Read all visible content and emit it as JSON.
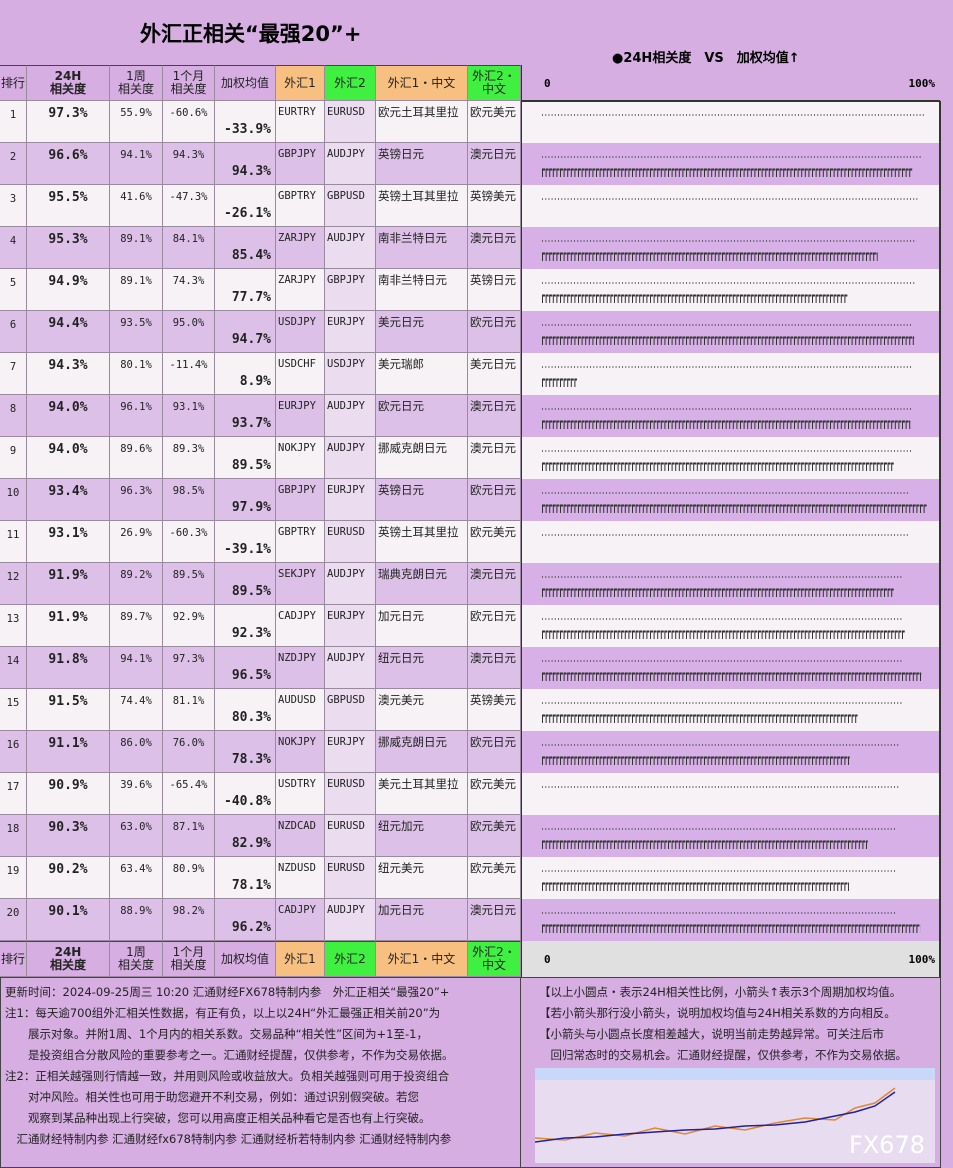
{
  "title": "外汇正相关“最强20”+",
  "legend_title": "●24H相关度　VS　加权均值↑",
  "header": [
    "排行",
    "24H\n相关度",
    "1周\n相关度",
    "1个月\n相关度",
    "加权均值",
    "外汇1",
    "外汇2",
    "外汇1・中文",
    "外汇2・\n中文"
  ],
  "scale_ticks": [
    0,
    {
      "value": 100,
      "label": "100%"
    }
  ],
  "rows": [
    [
      1,
      "97.3%",
      "55.9%",
      "-60.6%",
      "-33.9%",
      "EURTRY",
      "EURUSD",
      "欧元土耳其里拉",
      "欧元美元"
    ],
    [
      2,
      "96.6%",
      "94.1%",
      "94.3%",
      "94.3%",
      "GBPJPY",
      "AUDJPY",
      "英镑日元",
      "澳元日元"
    ],
    [
      3,
      "95.5%",
      "41.6%",
      "-47.3%",
      "-26.1%",
      "GBPTRY",
      "GBPUSD",
      "英镑土耳其里拉",
      "英镑美元"
    ],
    [
      4,
      "95.3%",
      "89.1%",
      "84.1%",
      "85.4%",
      "ZARJPY",
      "AUDJPY",
      "南非兰特日元",
      "澳元日元"
    ],
    [
      5,
      "94.9%",
      "89.1%",
      "74.3%",
      "77.7%",
      "ZARJPY",
      "GBPJPY",
      "南非兰特日元",
      "英镑日元"
    ],
    [
      6,
      "94.4%",
      "93.5%",
      "95.0%",
      "94.7%",
      "USDJPY",
      "EURJPY",
      "美元日元",
      "欧元日元"
    ],
    [
      7,
      "94.3%",
      "80.1%",
      "-11.4%",
      "8.9%",
      "USDCHF",
      "USDJPY",
      "美元瑞郎",
      "美元日元"
    ],
    [
      8,
      "94.0%",
      "96.1%",
      "93.1%",
      "93.7%",
      "EURJPY",
      "AUDJPY",
      "欧元日元",
      "澳元日元"
    ],
    [
      9,
      "94.0%",
      "89.6%",
      "89.3%",
      "89.5%",
      "NOKJPY",
      "AUDJPY",
      "挪威克朗日元",
      "澳元日元"
    ],
    [
      10,
      "93.4%",
      "96.3%",
      "98.5%",
      "97.9%",
      "GBPJPY",
      "EURJPY",
      "英镑日元",
      "欧元日元"
    ],
    [
      11,
      "93.1%",
      "26.9%",
      "-60.3%",
      "-39.1%",
      "GBPTRY",
      "EURUSD",
      "英镑土耳其里拉",
      "欧元美元"
    ],
    [
      12,
      "91.9%",
      "89.2%",
      "89.5%",
      "89.5%",
      "SEKJPY",
      "AUDJPY",
      "瑞典克朗日元",
      "澳元日元"
    ],
    [
      13,
      "91.9%",
      "89.7%",
      "92.9%",
      "92.3%",
      "CADJPY",
      "EURJPY",
      "加元日元",
      "欧元日元"
    ],
    [
      14,
      "91.8%",
      "94.1%",
      "97.3%",
      "96.5%",
      "NZDJPY",
      "AUDJPY",
      "纽元日元",
      "澳元日元"
    ],
    [
      15,
      "91.5%",
      "74.4%",
      "81.1%",
      "80.3%",
      "AUDUSD",
      "GBPUSD",
      "澳元美元",
      "英镑美元"
    ],
    [
      16,
      "91.1%",
      "86.0%",
      "76.0%",
      "78.3%",
      "NOKJPY",
      "EURJPY",
      "挪威克朗日元",
      "欧元日元"
    ],
    [
      17,
      "90.9%",
      "39.6%",
      "-65.4%",
      "-40.8%",
      "USDTRY",
      "EURUSD",
      "美元土耳其里拉",
      "欧元美元"
    ],
    [
      18,
      "90.3%",
      "63.0%",
      "87.1%",
      "82.9%",
      "NZDCAD",
      "EURUSD",
      "纽元加元",
      "欧元美元"
    ],
    [
      19,
      "90.2%",
      "63.4%",
      "80.9%",
      "78.1%",
      "NZDUSD",
      "EURUSD",
      "纽元美元",
      "欧元美元"
    ],
    [
      20,
      "90.1%",
      "88.9%",
      "98.2%",
      "96.2%",
      "CADJPY",
      "AUDJPY",
      "加元日元",
      "澳元日元"
    ]
  ],
  "notes_left": [
    "更新时间：2024-09-25周三 10:20 汇通财经FX678特制内参　外汇正相关“最强20”+",
    "注1：每天逾700组外汇相关性数据，有正有负，以上以24H“外汇最强正相关前20”为",
    "　　展示对象。并附1周、1个月内的相关系数。交易品种“相关性”区间为+1至-1，",
    "　　是投资组合分散风险的重要参考之一。汇通财经提醒，仅供参考，不作为交易依据。",
    "注2：正相关越强则行情越一致，并用则风险或收益放大。负相关越强则可用于投资组合",
    "　　对冲风险。相关性也可用于助您避开不利交易，例如：通过识别假突破。若您",
    "　　观察到某品种出现上行突破，您可以用高度正相关品种看它是否也有上行突破。",
    "　汇通财经特制内参 汇通财经fx678特制内参 汇通财经析若特制内参 汇通财经特制内参"
  ],
  "notes_right": [
    "【以上小圆点・表示24H相关性比例，小箭头↑表示3个周期加权均值。",
    "【若小箭头那行没小箭头，说明加权均值与24H相关系数的方向相反。",
    "【小箭头与小圆点长度相差越大，说明当前走势越异常。可关注后市",
    "　回归常态时的交易机会。汇通财经提醒，仅供参考，不作为交易依据。"
  ],
  "watermark": "FX678"
}
